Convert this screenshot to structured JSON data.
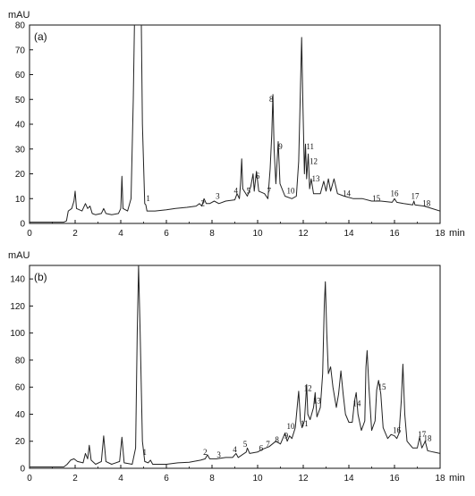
{
  "chart_data": [
    {
      "type": "line",
      "panel_label": "(a)",
      "ylabel": "mAU",
      "xlabel": "min",
      "xlim": [
        0,
        18
      ],
      "ylim": [
        0,
        80
      ],
      "xticks": [
        0,
        2,
        4,
        6,
        8,
        10,
        12,
        14,
        16,
        18
      ],
      "yticks": [
        0,
        10,
        20,
        30,
        40,
        50,
        60,
        70,
        80
      ],
      "grid": false,
      "series": [
        {
          "points": [
            [
              0,
              0.5
            ],
            [
              1.5,
              0.5
            ],
            [
              1.62,
              1
            ],
            [
              1.7,
              5
            ],
            [
              1.85,
              6
            ],
            [
              1.95,
              9
            ],
            [
              2.0,
              13
            ],
            [
              2.06,
              6
            ],
            [
              2.3,
              5
            ],
            [
              2.45,
              8
            ],
            [
              2.55,
              6
            ],
            [
              2.65,
              7
            ],
            [
              2.75,
              4
            ],
            [
              2.9,
              3.5
            ],
            [
              3.15,
              4
            ],
            [
              3.25,
              6
            ],
            [
              3.35,
              4
            ],
            [
              3.6,
              3.5
            ],
            [
              3.9,
              4
            ],
            [
              4.0,
              6
            ],
            [
              4.05,
              19
            ],
            [
              4.1,
              6
            ],
            [
              4.3,
              5
            ],
            [
              4.45,
              10
            ],
            [
              4.55,
              50
            ],
            [
              4.6,
              80
            ],
            [
              4.9,
              80
            ],
            [
              4.95,
              40
            ],
            [
              5.05,
              8
            ],
            [
              5.1,
              7.5
            ],
            [
              5.15,
              5
            ],
            [
              5.5,
              5
            ],
            [
              6.0,
              5.5
            ],
            [
              6.4,
              6
            ],
            [
              6.9,
              6.5
            ],
            [
              7.3,
              7
            ],
            [
              7.45,
              8
            ],
            [
              7.55,
              7
            ],
            [
              7.65,
              10
            ],
            [
              7.75,
              8
            ],
            [
              7.9,
              8
            ],
            [
              8.1,
              9
            ],
            [
              8.3,
              8
            ],
            [
              8.6,
              9
            ],
            [
              9.0,
              9.5
            ],
            [
              9.1,
              12
            ],
            [
              9.2,
              10
            ],
            [
              9.25,
              16
            ],
            [
              9.3,
              26
            ],
            [
              9.35,
              14
            ],
            [
              9.55,
              11
            ],
            [
              9.7,
              15
            ],
            [
              9.8,
              20
            ],
            [
              9.85,
              13
            ],
            [
              9.95,
              21
            ],
            [
              10.05,
              13
            ],
            [
              10.3,
              12
            ],
            [
              10.45,
              10
            ],
            [
              10.55,
              22
            ],
            [
              10.62,
              36
            ],
            [
              10.67,
              52
            ],
            [
              10.72,
              30
            ],
            [
              10.8,
              16
            ],
            [
              10.9,
              33
            ],
            [
              10.98,
              16
            ],
            [
              11.2,
              11
            ],
            [
              11.5,
              10
            ],
            [
              11.7,
              11
            ],
            [
              11.8,
              25
            ],
            [
              11.88,
              55
            ],
            [
              11.93,
              75
            ],
            [
              11.98,
              50
            ],
            [
              12.05,
              20
            ],
            [
              12.1,
              32
            ],
            [
              12.15,
              18
            ],
            [
              12.22,
              28
            ],
            [
              12.28,
              14
            ],
            [
              12.35,
              18
            ],
            [
              12.45,
              12
            ],
            [
              12.6,
              12
            ],
            [
              12.75,
              12
            ],
            [
              12.9,
              17
            ],
            [
              13.0,
              13
            ],
            [
              13.1,
              18
            ],
            [
              13.2,
              13
            ],
            [
              13.35,
              18
            ],
            [
              13.5,
              12
            ],
            [
              13.8,
              11
            ],
            [
              14.2,
              10
            ],
            [
              14.6,
              10
            ],
            [
              15.0,
              9
            ],
            [
              15.4,
              9
            ],
            [
              15.9,
              8.5
            ],
            [
              16.0,
              10
            ],
            [
              16.1,
              8.5
            ],
            [
              16.4,
              8
            ],
            [
              16.8,
              7.5
            ],
            [
              16.85,
              9
            ],
            [
              16.9,
              7.5
            ],
            [
              17.3,
              7
            ],
            [
              18.0,
              5
            ]
          ]
        }
      ],
      "peak_labels": [
        {
          "text": "1",
          "x": 5.2,
          "y": 9
        },
        {
          "text": "2",
          "x": 7.6,
          "y": 7
        },
        {
          "text": "3",
          "x": 8.25,
          "y": 10
        },
        {
          "text": "4",
          "x": 9.05,
          "y": 12
        },
        {
          "text": "5",
          "x": 9.6,
          "y": 12
        },
        {
          "text": "6",
          "x": 10.0,
          "y": 18
        },
        {
          "text": "7",
          "x": 10.5,
          "y": 12
        },
        {
          "text": "8",
          "x": 10.6,
          "y": 49
        },
        {
          "text": "9",
          "x": 11.0,
          "y": 30
        },
        {
          "text": "10",
          "x": 11.45,
          "y": 12
        },
        {
          "text": "11",
          "x": 12.3,
          "y": 30
        },
        {
          "text": "12",
          "x": 12.45,
          "y": 24
        },
        {
          "text": "13",
          "x": 12.55,
          "y": 17
        },
        {
          "text": "14",
          "x": 13.9,
          "y": 11
        },
        {
          "text": "15",
          "x": 15.2,
          "y": 9
        },
        {
          "text": "16",
          "x": 16.0,
          "y": 11
        },
        {
          "text": "17",
          "x": 16.9,
          "y": 10
        },
        {
          "text": "18",
          "x": 17.4,
          "y": 7
        }
      ]
    },
    {
      "type": "line",
      "panel_label": "(b)",
      "ylabel": "mAU",
      "xlabel": "min",
      "xlim": [
        0,
        18
      ],
      "ylim": [
        0,
        150
      ],
      "xticks": [
        0,
        2,
        4,
        6,
        8,
        10,
        12,
        14,
        16,
        18
      ],
      "yticks": [
        0,
        20,
        40,
        60,
        80,
        100,
        120,
        140
      ],
      "grid": false,
      "series": [
        {
          "points": [
            [
              0,
              1
            ],
            [
              1.5,
              1
            ],
            [
              1.65,
              3
            ],
            [
              1.8,
              6
            ],
            [
              1.95,
              7
            ],
            [
              2.1,
              5
            ],
            [
              2.35,
              4
            ],
            [
              2.45,
              11
            ],
            [
              2.55,
              7
            ],
            [
              2.62,
              17
            ],
            [
              2.7,
              6
            ],
            [
              2.9,
              3
            ],
            [
              3.15,
              5
            ],
            [
              3.25,
              24
            ],
            [
              3.35,
              5
            ],
            [
              3.6,
              3
            ],
            [
              3.95,
              5
            ],
            [
              4.05,
              23
            ],
            [
              4.15,
              4
            ],
            [
              4.5,
              3
            ],
            [
              4.65,
              15
            ],
            [
              4.72,
              100
            ],
            [
              4.78,
              150
            ],
            [
              4.85,
              100
            ],
            [
              4.95,
              20
            ],
            [
              5.05,
              5
            ],
            [
              5.2,
              4
            ],
            [
              5.3,
              6
            ],
            [
              5.4,
              3
            ],
            [
              6.0,
              3
            ],
            [
              6.5,
              4
            ],
            [
              7.0,
              4.5
            ],
            [
              7.5,
              6
            ],
            [
              7.7,
              7
            ],
            [
              7.8,
              10
            ],
            [
              7.9,
              7
            ],
            [
              8.2,
              7
            ],
            [
              8.6,
              8
            ],
            [
              8.9,
              8
            ],
            [
              9.05,
              11
            ],
            [
              9.15,
              8
            ],
            [
              9.5,
              12
            ],
            [
              9.55,
              15
            ],
            [
              9.65,
              11
            ],
            [
              10.0,
              12
            ],
            [
              10.2,
              14
            ],
            [
              10.5,
              16
            ],
            [
              10.8,
              20
            ],
            [
              11.0,
              18
            ],
            [
              11.1,
              22
            ],
            [
              11.2,
              26
            ],
            [
              11.3,
              20
            ],
            [
              11.4,
              24
            ],
            [
              11.5,
              22
            ],
            [
              11.65,
              30
            ],
            [
              11.75,
              48
            ],
            [
              11.8,
              57
            ],
            [
              11.88,
              35
            ],
            [
              11.95,
              30
            ],
            [
              12.05,
              35
            ],
            [
              12.15,
              62
            ],
            [
              12.2,
              40
            ],
            [
              12.3,
              36
            ],
            [
              12.45,
              45
            ],
            [
              12.52,
              56
            ],
            [
              12.6,
              38
            ],
            [
              12.75,
              45
            ],
            [
              12.85,
              70
            ],
            [
              12.92,
              120
            ],
            [
              12.97,
              138
            ],
            [
              13.03,
              100
            ],
            [
              13.1,
              70
            ],
            [
              13.2,
              75
            ],
            [
              13.3,
              60
            ],
            [
              13.45,
              45
            ],
            [
              13.55,
              55
            ],
            [
              13.65,
              72
            ],
            [
              13.75,
              55
            ],
            [
              13.85,
              40
            ],
            [
              14.0,
              34
            ],
            [
              14.15,
              34
            ],
            [
              14.25,
              50
            ],
            [
              14.32,
              56
            ],
            [
              14.4,
              40
            ],
            [
              14.55,
              28
            ],
            [
              14.7,
              35
            ],
            [
              14.75,
              75
            ],
            [
              14.8,
              87
            ],
            [
              14.88,
              60
            ],
            [
              15.0,
              28
            ],
            [
              15.15,
              35
            ],
            [
              15.22,
              58
            ],
            [
              15.3,
              65
            ],
            [
              15.4,
              55
            ],
            [
              15.5,
              30
            ],
            [
              15.7,
              22
            ],
            [
              15.85,
              25
            ],
            [
              16.0,
              24
            ],
            [
              16.1,
              22
            ],
            [
              16.2,
              26
            ],
            [
              16.3,
              50
            ],
            [
              16.37,
              77
            ],
            [
              16.45,
              40
            ],
            [
              16.55,
              20
            ],
            [
              16.8,
              15
            ],
            [
              17.0,
              15
            ],
            [
              17.1,
              23
            ],
            [
              17.2,
              15
            ],
            [
              17.35,
              20
            ],
            [
              17.45,
              13
            ],
            [
              17.7,
              12
            ],
            [
              18.0,
              11
            ]
          ]
        }
      ],
      "peak_labels": [
        {
          "text": "1",
          "x": 5.05,
          "y": 10
        },
        {
          "text": "2",
          "x": 7.7,
          "y": 10
        },
        {
          "text": "3",
          "x": 8.3,
          "y": 8
        },
        {
          "text": "4",
          "x": 9.0,
          "y": 12
        },
        {
          "text": "5",
          "x": 9.45,
          "y": 16
        },
        {
          "text": "6",
          "x": 10.15,
          "y": 13
        },
        {
          "text": "7",
          "x": 10.45,
          "y": 16
        },
        {
          "text": "8",
          "x": 10.85,
          "y": 19
        },
        {
          "text": "9",
          "x": 11.25,
          "y": 22
        },
        {
          "text": "10",
          "x": 11.45,
          "y": 29
        },
        {
          "text": "11",
          "x": 12.05,
          "y": 31
        },
        {
          "text": "12",
          "x": 12.2,
          "y": 57
        },
        {
          "text": "13",
          "x": 12.6,
          "y": 48
        },
        {
          "text": "14",
          "x": 14.35,
          "y": 46
        },
        {
          "text": "15",
          "x": 15.45,
          "y": 58
        },
        {
          "text": "16",
          "x": 16.1,
          "y": 26
        },
        {
          "text": "17",
          "x": 17.2,
          "y": 23
        },
        {
          "text": "18",
          "x": 17.45,
          "y": 20
        }
      ]
    }
  ]
}
